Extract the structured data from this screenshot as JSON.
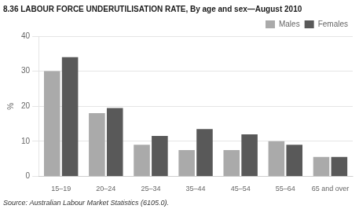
{
  "chart_data": {
    "type": "bar",
    "title": "8.36 LABOUR FORCE UNDERUTILISATION RATE, By age and sex—August 2010",
    "ylabel": "%",
    "annotations": [
      "Source: Australian Labour Market Statistics (6105.0)."
    ],
    "categories": [
      "15–19",
      "20–24",
      "25–34",
      "35–44",
      "45–54",
      "55–64",
      "65 and over"
    ],
    "series": [
      {
        "name": "Males",
        "color": "#aaaaaa",
        "values": [
          30.0,
          18.0,
          9.0,
          7.5,
          7.5,
          10.0,
          5.5
        ]
      },
      {
        "name": "Females",
        "color": "#595959",
        "values": [
          34.0,
          19.5,
          11.5,
          13.5,
          12.0,
          9.0,
          5.5
        ]
      }
    ],
    "ylim": [
      0,
      40
    ],
    "yticks": [
      0,
      10,
      20,
      30,
      40
    ],
    "grid": true,
    "legend": "upper right"
  }
}
